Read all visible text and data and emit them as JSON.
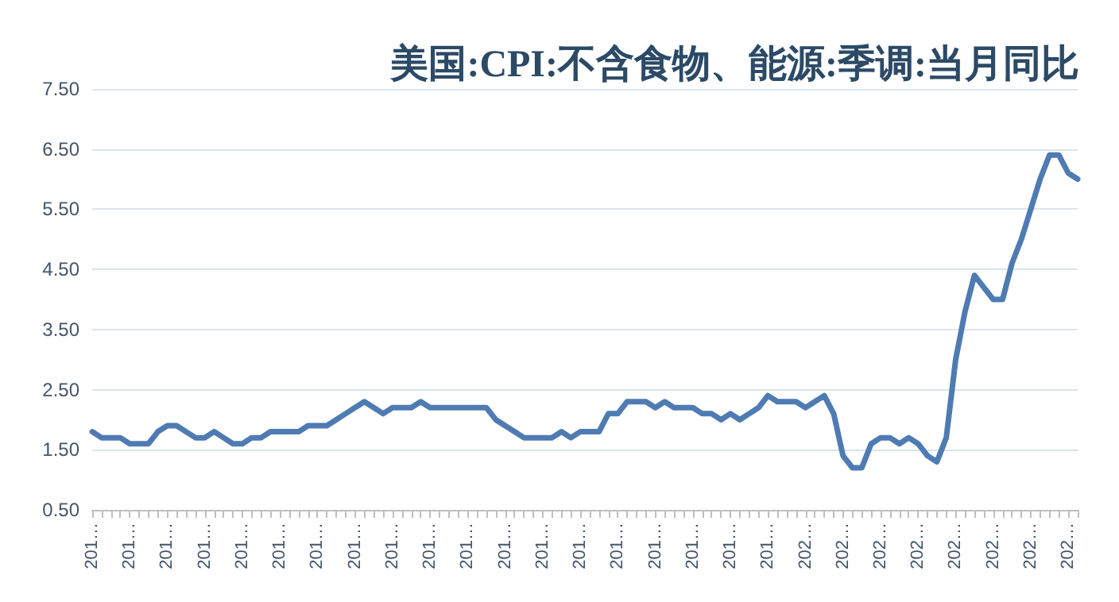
{
  "chart_data": {
    "type": "line",
    "title": "美国:CPI:不含食物、能源:季调:当月同比",
    "categories": [
      "201…",
      null,
      null,
      null,
      "201…",
      null,
      null,
      null,
      "201…",
      null,
      null,
      null,
      "201…",
      null,
      null,
      null,
      "201…",
      null,
      null,
      null,
      "201…",
      null,
      null,
      null,
      "201…",
      null,
      null,
      null,
      "201…",
      null,
      null,
      null,
      "201…",
      null,
      null,
      null,
      "201…",
      null,
      null,
      null,
      "201…",
      null,
      null,
      null,
      "201…",
      null,
      null,
      null,
      "201…",
      null,
      null,
      null,
      "201…",
      null,
      null,
      null,
      "201…",
      null,
      null,
      null,
      "201…",
      null,
      null,
      null,
      "201…",
      null,
      null,
      null,
      "201…",
      null,
      null,
      null,
      "201…",
      null,
      null,
      null,
      "202…",
      null,
      null,
      null,
      "202…",
      null,
      null,
      null,
      "202…",
      null,
      null,
      null,
      "202…",
      null,
      null,
      null,
      "202…",
      null,
      null,
      null,
      "202…",
      null,
      null,
      null,
      "202…",
      null,
      null,
      null,
      "202…",
      null
    ],
    "series": [
      {
        "color": "#4f7bb3",
        "values": [
          1.8,
          1.7,
          1.7,
          1.7,
          1.6,
          1.6,
          1.6,
          1.8,
          1.9,
          1.9,
          1.8,
          1.7,
          1.7,
          1.8,
          1.7,
          1.6,
          1.6,
          1.7,
          1.7,
          1.8,
          1.8,
          1.8,
          1.8,
          1.9,
          1.9,
          1.9,
          2.0,
          2.1,
          2.2,
          2.3,
          2.2,
          2.1,
          2.2,
          2.2,
          2.2,
          2.3,
          2.2,
          2.2,
          2.2,
          2.2,
          2.2,
          2.2,
          2.2,
          2.0,
          1.9,
          1.8,
          1.7,
          1.7,
          1.7,
          1.7,
          1.8,
          1.7,
          1.8,
          1.8,
          1.8,
          2.1,
          2.1,
          2.3,
          2.3,
          2.3,
          2.2,
          2.3,
          2.2,
          2.2,
          2.2,
          2.1,
          2.1,
          2.0,
          2.1,
          2.0,
          2.1,
          2.2,
          2.4,
          2.3,
          2.3,
          2.3,
          2.2,
          2.3,
          2.4,
          2.1,
          1.4,
          1.2,
          1.2,
          1.6,
          1.7,
          1.7,
          1.6,
          1.7,
          1.6,
          1.4,
          1.3,
          1.7,
          3.0,
          3.8,
          4.4,
          4.2,
          4.0,
          4.0,
          4.6,
          5.0,
          5.5,
          6.0,
          6.4,
          6.4,
          6.1,
          6.0
        ]
      }
    ],
    "ylim": [
      0.5,
      7.5
    ],
    "yticks": [
      {
        "value": 0.5,
        "label": "0.50"
      },
      {
        "value": 1.5,
        "label": "1.50"
      },
      {
        "value": 2.5,
        "label": "2.50"
      },
      {
        "value": 3.5,
        "label": "3.50"
      },
      {
        "value": 4.5,
        "label": "4.50"
      },
      {
        "value": 5.5,
        "label": "5.50"
      },
      {
        "value": 6.5,
        "label": "6.50"
      },
      {
        "value": 7.5,
        "label": "7.50"
      }
    ],
    "grid": "y",
    "marker": "none",
    "line_style": "solid"
  }
}
